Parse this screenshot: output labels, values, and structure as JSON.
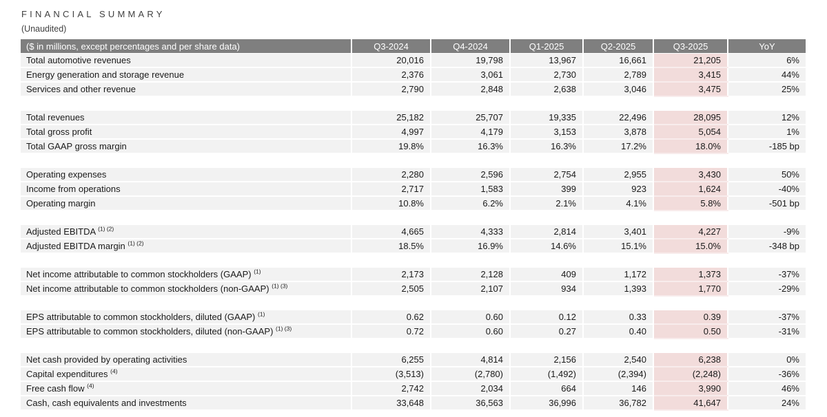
{
  "header": {
    "title": "FINANCIAL SUMMARY",
    "subtitle": "(Unaudited)"
  },
  "table": {
    "header_label": "($ in millions, except percentages and per share data)",
    "columns": [
      "Q3-2024",
      "Q4-2024",
      "Q1-2025",
      "Q2-2025",
      "Q3-2025",
      "YoY"
    ],
    "highlight_column": "Q3-2025",
    "sections": [
      {
        "rows": [
          {
            "label": "Total automotive revenues",
            "sup": "",
            "values": [
              "20,016",
              "19,798",
              "13,967",
              "16,661",
              "21,205",
              "6%"
            ]
          },
          {
            "label": "Energy generation and storage revenue",
            "sup": "",
            "values": [
              "2,376",
              "3,061",
              "2,730",
              "2,789",
              "3,415",
              "44%"
            ]
          },
          {
            "label": "Services and other revenue",
            "sup": "",
            "values": [
              "2,790",
              "2,848",
              "2,638",
              "3,046",
              "3,475",
              "25%"
            ]
          }
        ]
      },
      {
        "rows": [
          {
            "label": "Total revenues",
            "sup": "",
            "values": [
              "25,182",
              "25,707",
              "19,335",
              "22,496",
              "28,095",
              "12%"
            ]
          },
          {
            "label": "Total gross profit",
            "sup": "",
            "values": [
              "4,997",
              "4,179",
              "3,153",
              "3,878",
              "5,054",
              "1%"
            ]
          },
          {
            "label": "Total GAAP gross margin",
            "sup": "",
            "values": [
              "19.8%",
              "16.3%",
              "16.3%",
              "17.2%",
              "18.0%",
              "-185 bp"
            ]
          }
        ]
      },
      {
        "rows": [
          {
            "label": "Operating expenses",
            "sup": "",
            "values": [
              "2,280",
              "2,596",
              "2,754",
              "2,955",
              "3,430",
              "50%"
            ]
          },
          {
            "label": "Income from operations",
            "sup": "",
            "values": [
              "2,717",
              "1,583",
              "399",
              "923",
              "1,624",
              "-40%"
            ]
          },
          {
            "label": "Operating margin",
            "sup": "",
            "values": [
              "10.8%",
              "6.2%",
              "2.1%",
              "4.1%",
              "5.8%",
              "-501 bp"
            ]
          }
        ]
      },
      {
        "rows": [
          {
            "label": "Adjusted EBITDA",
            "sup": "(1) (2)",
            "values": [
              "4,665",
              "4,333",
              "2,814",
              "3,401",
              "4,227",
              "-9%"
            ]
          },
          {
            "label": "Adjusted EBITDA margin",
            "sup": "(1) (2)",
            "values": [
              "18.5%",
              "16.9%",
              "14.6%",
              "15.1%",
              "15.0%",
              "-348 bp"
            ]
          }
        ]
      },
      {
        "rows": [
          {
            "label": "Net income attributable to common stockholders (GAAP)",
            "sup": "(1)",
            "values": [
              "2,173",
              "2,128",
              "409",
              "1,172",
              "1,373",
              "-37%"
            ]
          },
          {
            "label": "Net income attributable to common stockholders (non-GAAP)",
            "sup": "(1) (3)",
            "values": [
              "2,505",
              "2,107",
              "934",
              "1,393",
              "1,770",
              "-29%"
            ]
          }
        ]
      },
      {
        "rows": [
          {
            "label": "EPS attributable to common stockholders, diluted (GAAP)",
            "sup": "(1)",
            "values": [
              "0.62",
              "0.60",
              "0.12",
              "0.33",
              "0.39",
              "-37%"
            ]
          },
          {
            "label": "EPS attributable to common stockholders, diluted (non-GAAP)",
            "sup": "(1) (3)",
            "values": [
              "0.72",
              "0.60",
              "0.27",
              "0.40",
              "0.50",
              "-31%"
            ]
          }
        ]
      },
      {
        "rows": [
          {
            "label": "Net cash provided by operating activities",
            "sup": "",
            "values": [
              "6,255",
              "4,814",
              "2,156",
              "2,540",
              "6,238",
              "0%"
            ]
          },
          {
            "label": "Capital expenditures",
            "sup": "(4)",
            "values": [
              "(3,513)",
              "(2,780)",
              "(1,492)",
              "(2,394)",
              "(2,248)",
              "-36%"
            ]
          },
          {
            "label": "Free cash flow",
            "sup": "(4)",
            "values": [
              "2,742",
              "2,034",
              "664",
              "146",
              "3,990",
              "46%"
            ]
          },
          {
            "label": "Cash, cash equivalents and investments",
            "sup": "",
            "values": [
              "33,648",
              "36,563",
              "36,996",
              "36,782",
              "41,647",
              "24%"
            ]
          }
        ]
      }
    ]
  },
  "colors": {
    "page-bg": "#ffffff",
    "header-bg": "#7f7f7f",
    "header-text": "#ffffff",
    "row-bg": "#f2f2f2",
    "highlight-bg": "#f2dcdb",
    "highlight-divider": "#f8ecec",
    "title-text": "#404040",
    "body-text": "#1a1a1a"
  }
}
